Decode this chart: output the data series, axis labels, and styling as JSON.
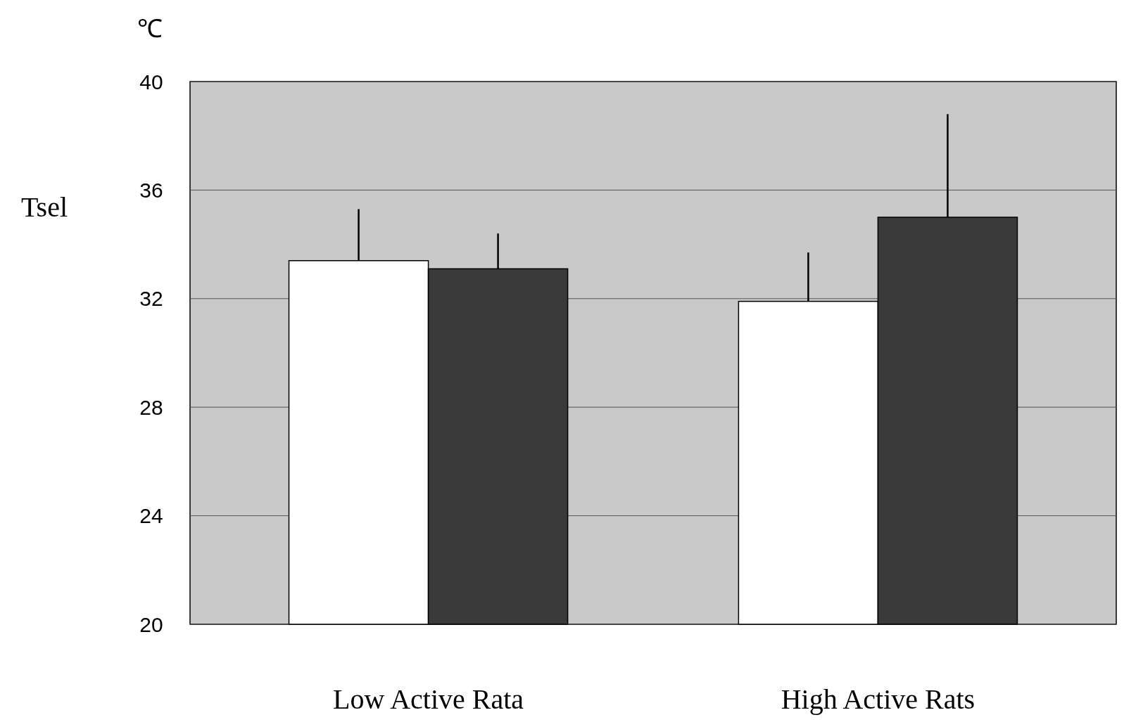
{
  "chart_data": {
    "type": "bar",
    "ylabel": "Tsel",
    "annotations": [
      "℃"
    ],
    "categories": [
      "Low Active Rata",
      "High Active Rats"
    ],
    "series": [
      {
        "color": "#ffffff",
        "values": [
          33.4,
          31.9
        ],
        "errors": [
          [
            33.4,
            35.3
          ],
          [
            31.9,
            33.7
          ]
        ]
      },
      {
        "color": "#3a3a3a",
        "values": [
          33.1,
          35.0
        ],
        "errors": [
          [
            33.1,
            34.4
          ],
          [
            35.0,
            38.8
          ]
        ]
      }
    ],
    "ylim": [
      20,
      40
    ],
    "yticks": [
      20,
      24,
      28,
      32,
      36,
      40
    ],
    "grid": "y"
  }
}
